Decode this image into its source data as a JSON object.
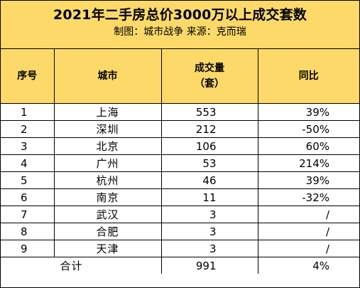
{
  "title": "2021年二手房总价3000万以上成交套数",
  "subtitle": "制图：城市战争   来源：克而瑞",
  "headers": {
    "index": "序号",
    "city": "城市",
    "volume_line1": "成交量",
    "volume_line2": "（套）",
    "yoy": "同比"
  },
  "rows": [
    {
      "index": "1",
      "city": "上海",
      "volume": "553",
      "yoy": "39%"
    },
    {
      "index": "2",
      "city": "深圳",
      "volume": "212",
      "yoy": "-50%"
    },
    {
      "index": "3",
      "city": "北京",
      "volume": "106",
      "yoy": "60%"
    },
    {
      "index": "4",
      "city": "广州",
      "volume": "53",
      "yoy": "214%"
    },
    {
      "index": "5",
      "city": "杭州",
      "volume": "46",
      "yoy": "39%"
    },
    {
      "index": "6",
      "city": "南京",
      "volume": "11",
      "yoy": "-32%"
    },
    {
      "index": "7",
      "city": "武汉",
      "volume": "3",
      "yoy": "/"
    },
    {
      "index": "8",
      "city": "合肥",
      "volume": "3",
      "yoy": "/"
    },
    {
      "index": "9",
      "city": "天津",
      "volume": "3",
      "yoy": "/"
    }
  ],
  "total": {
    "label": "合计",
    "volume": "991",
    "yoy": "4%"
  },
  "colors": {
    "header_bg": "#FCD968",
    "border": "#000000"
  }
}
